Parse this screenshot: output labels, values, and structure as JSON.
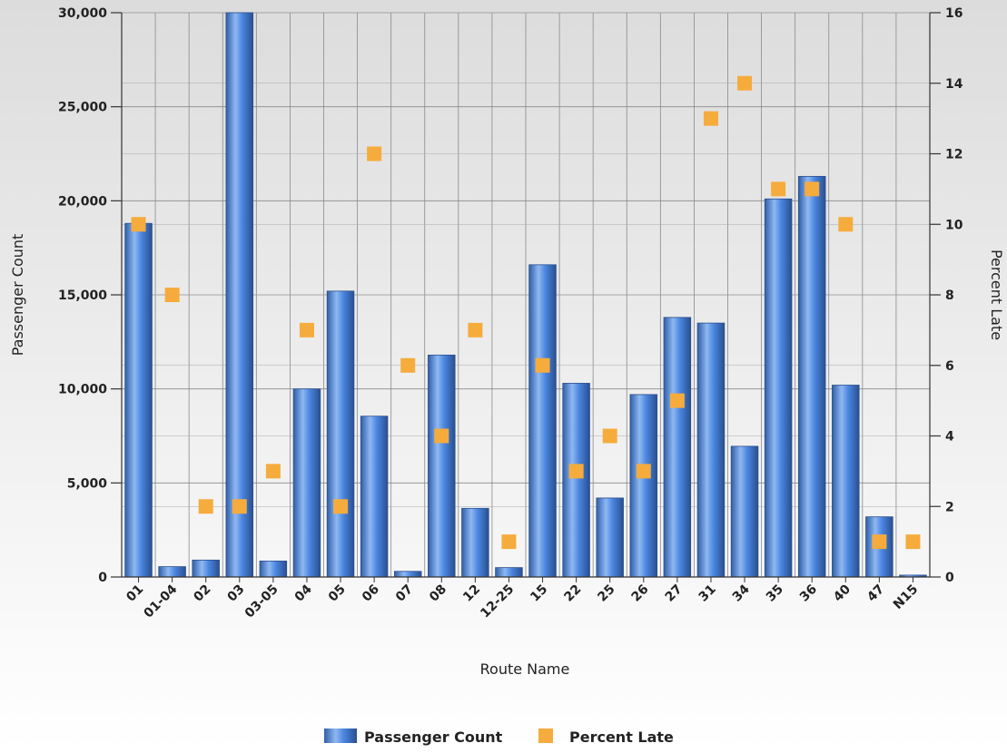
{
  "chart_data": {
    "type": "bar",
    "categories": [
      "01",
      "01-04",
      "02",
      "03",
      "03-05",
      "04",
      "05",
      "06",
      "07",
      "08",
      "12",
      "12-25",
      "15",
      "22",
      "25",
      "26",
      "27",
      "31",
      "34",
      "35",
      "36",
      "40",
      "47",
      "N15"
    ],
    "series": [
      {
        "name": "Passenger Count",
        "type": "bar",
        "axis": "left",
        "color": "#4a86e0",
        "values": [
          18800,
          550,
          900,
          30000,
          850,
          10000,
          15200,
          8550,
          300,
          11800,
          3650,
          500,
          16600,
          10300,
          4200,
          9700,
          13800,
          13500,
          6950,
          20100,
          21300,
          10200,
          3200,
          100
        ]
      },
      {
        "name": "Percent Late",
        "type": "scatter",
        "axis": "right",
        "color": "#f5ac3c",
        "values": [
          10,
          8,
          2,
          2,
          3,
          7,
          2,
          12,
          6,
          4,
          7,
          1,
          6,
          3,
          4,
          3,
          5,
          13,
          14,
          11,
          11,
          10,
          1,
          1
        ]
      }
    ],
    "xlabel": "Route Name",
    "ylabel": "Passenger Count",
    "y2label": "Percent Late",
    "ylim": [
      0,
      30000
    ],
    "y2lim": [
      0,
      16
    ],
    "yticks": [
      "0",
      "5,000",
      "10,000",
      "15,000",
      "20,000",
      "25,000",
      "30,000"
    ],
    "y2ticks": [
      "0",
      "2",
      "4",
      "6",
      "8",
      "10",
      "12",
      "14",
      "16"
    ],
    "grid": true,
    "legend_position": "bottom"
  }
}
